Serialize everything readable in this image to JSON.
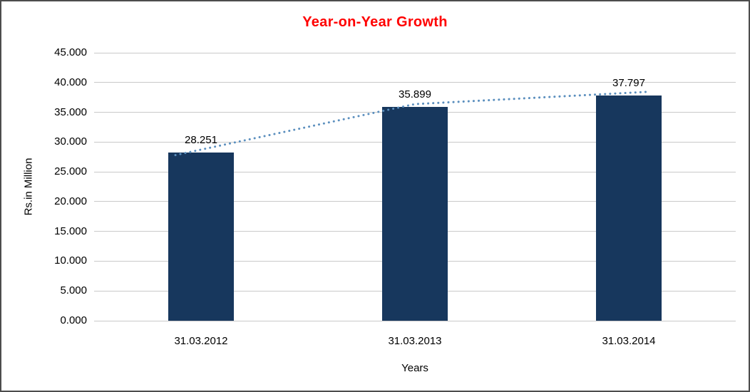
{
  "chart_data": {
    "type": "bar",
    "title": "Year-on-Year Growth",
    "title_color": "#ff0000",
    "xlabel": "Years",
    "ylabel": "Rs.in Million",
    "ylim": [
      0,
      45
    ],
    "grid": true,
    "legend": false,
    "bar_color": "#17375d",
    "trend_color": "#5b8fbe",
    "trendline": true,
    "categories": [
      "31.03.2012",
      "31.03.2013",
      "31.03.2014"
    ],
    "values": [
      28.251,
      35.899,
      37.797
    ],
    "data_labels": [
      "28.251",
      "35.899",
      "37.797"
    ],
    "yticks": {
      "values": [
        0,
        5,
        10,
        15,
        20,
        25,
        30,
        35,
        40,
        45
      ],
      "labels": [
        "0.000",
        "5.000",
        "10.000",
        "15.000",
        "20.000",
        "25.000",
        "30.000",
        "35.000",
        "40.000",
        "45.000"
      ]
    }
  }
}
